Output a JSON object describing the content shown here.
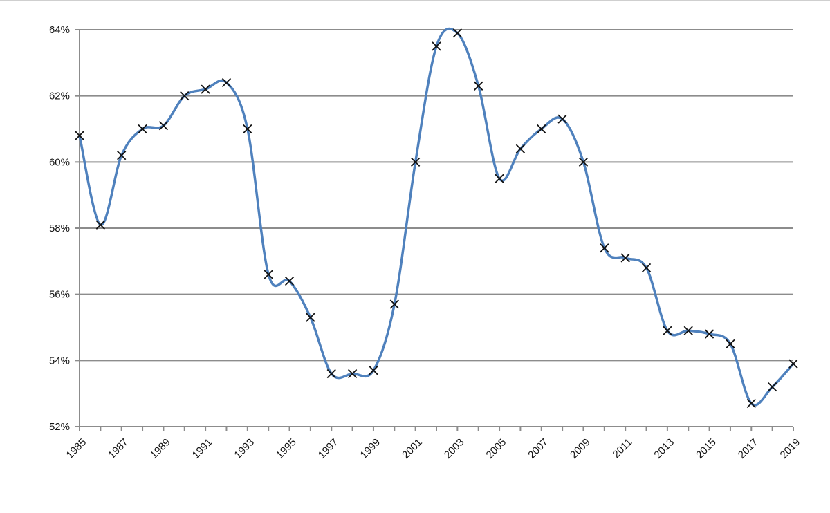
{
  "chart_data": {
    "type": "line",
    "title": "",
    "xlabel": "",
    "ylabel": "",
    "x": [
      1985,
      1986,
      1987,
      1988,
      1989,
      1990,
      1991,
      1992,
      1993,
      1994,
      1995,
      1996,
      1997,
      1998,
      1999,
      2000,
      2001,
      2002,
      2003,
      2004,
      2005,
      2006,
      2007,
      2008,
      2009,
      2010,
      2011,
      2012,
      2013,
      2014,
      2015,
      2016,
      2017,
      2018,
      2019
    ],
    "x_tick_labels": [
      "1985",
      "1987",
      "1989",
      "1991",
      "1993",
      "1995",
      "1997",
      "1999",
      "2001",
      "2003",
      "2005",
      "2007",
      "2009",
      "2011",
      "2013",
      "2015",
      "2017",
      "2019"
    ],
    "y_tick_labels": [
      "52%",
      "54%",
      "56%",
      "58%",
      "60%",
      "62%",
      "64%"
    ],
    "y_ticks": [
      52,
      54,
      56,
      58,
      60,
      62,
      64
    ],
    "ylim": [
      52,
      64
    ],
    "grid": "horizontal",
    "smoothed": true,
    "marker": "x",
    "series": [
      {
        "color": "#4f81bd",
        "values": [
          60.8,
          58.1,
          60.2,
          61.0,
          61.1,
          62.0,
          62.2,
          62.4,
          61.0,
          56.6,
          56.4,
          55.3,
          53.6,
          53.6,
          53.7,
          55.7,
          60.0,
          63.5,
          63.9,
          62.3,
          59.5,
          60.4,
          61.0,
          61.3,
          60.0,
          57.4,
          57.1,
          56.8,
          54.9,
          54.9,
          54.8,
          54.5,
          52.7,
          53.2,
          53.9
        ]
      }
    ]
  }
}
